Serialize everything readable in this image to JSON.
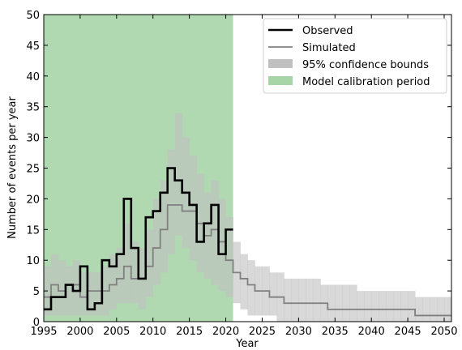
{
  "chart_data": {
    "type": "line",
    "xlabel": "Year",
    "ylabel": "Number of events per year",
    "xlim": [
      1995,
      2051
    ],
    "ylim": [
      0,
      50
    ],
    "xticks": [
      1995,
      2000,
      2005,
      2010,
      2015,
      2020,
      2025,
      2030,
      2035,
      2040,
      2045,
      2050
    ],
    "yticks": [
      0,
      5,
      10,
      15,
      20,
      25,
      30,
      35,
      40,
      45,
      50
    ],
    "calibration_period": [
      1995,
      2021
    ],
    "legend_position": "top-right",
    "colors": {
      "observed": "#000000",
      "simulated": "#808080",
      "confidence": "#c0c0c0",
      "calibration": "#a8d5a8"
    },
    "legend": [
      {
        "key": "observed",
        "label": "Observed"
      },
      {
        "key": "simulated",
        "label": "Simulated"
      },
      {
        "key": "confidence",
        "label": "95% confidence bounds"
      },
      {
        "key": "calibration",
        "label": "Model calibration period"
      }
    ],
    "observed": {
      "name": "Observed",
      "x": [
        1995,
        1996,
        1997,
        1998,
        1999,
        2000,
        2001,
        2002,
        2003,
        2004,
        2005,
        2006,
        2007,
        2008,
        2009,
        2010,
        2011,
        2012,
        2013,
        2014,
        2015,
        2016,
        2017,
        2018,
        2019,
        2020
      ],
      "y": [
        2,
        4,
        4,
        6,
        5,
        9,
        2,
        3,
        10,
        9,
        11,
        20,
        12,
        7,
        17,
        18,
        21,
        25,
        23,
        21,
        19,
        13,
        16,
        19,
        11,
        15
      ]
    },
    "simulated": {
      "name": "Simulated",
      "x": [
        1995,
        1996,
        1997,
        1998,
        1999,
        2000,
        2001,
        2002,
        2003,
        2004,
        2005,
        2006,
        2007,
        2008,
        2009,
        2010,
        2011,
        2012,
        2013,
        2014,
        2015,
        2016,
        2017,
        2018,
        2019,
        2020,
        2021,
        2022,
        2023,
        2024,
        2025,
        2026,
        2027,
        2028,
        2029,
        2030,
        2031,
        2032,
        2033,
        2034,
        2035,
        2036,
        2037,
        2038,
        2039,
        2040,
        2041,
        2042,
        2043,
        2044,
        2045,
        2046,
        2047,
        2048,
        2049,
        2050
      ],
      "y": [
        4,
        6,
        5,
        6,
        6,
        4,
        5,
        5,
        5,
        6,
        7,
        9,
        7,
        7,
        9,
        12,
        15,
        19,
        19,
        18,
        18,
        16,
        14,
        15,
        13,
        10,
        8,
        7,
        6,
        5,
        5,
        4,
        4,
        3,
        3,
        3,
        3,
        3,
        3,
        2,
        2,
        2,
        2,
        2,
        2,
        2,
        2,
        2,
        2,
        2,
        2,
        1,
        1,
        1,
        1,
        1
      ]
    },
    "confidence_bounds": {
      "name": "95% confidence bounds",
      "x": [
        1995,
        1996,
        1997,
        1998,
        1999,
        2000,
        2001,
        2002,
        2003,
        2004,
        2005,
        2006,
        2007,
        2008,
        2009,
        2010,
        2011,
        2012,
        2013,
        2014,
        2015,
        2016,
        2017,
        2018,
        2019,
        2020,
        2021,
        2022,
        2023,
        2024,
        2025,
        2026,
        2027,
        2028,
        2029,
        2030,
        2031,
        2032,
        2033,
        2034,
        2035,
        2036,
        2037,
        2038,
        2039,
        2040,
        2041,
        2042,
        2043,
        2044,
        2045,
        2046,
        2047,
        2048,
        2049,
        2050
      ],
      "lower": [
        1,
        1,
        1,
        1,
        1,
        1,
        1,
        1,
        1,
        2,
        3,
        3,
        3,
        2,
        4,
        6,
        8,
        11,
        14,
        12,
        10,
        8,
        7,
        6,
        5,
        4,
        3,
        2,
        1,
        1,
        1,
        1,
        0,
        0,
        0,
        0,
        0,
        0,
        0,
        0,
        0,
        0,
        0,
        0,
        0,
        0,
        0,
        0,
        0,
        0,
        0,
        0,
        0,
        0,
        0,
        0
      ],
      "upper": [
        9,
        11,
        10,
        9,
        10,
        8,
        8,
        8,
        9,
        11,
        12,
        16,
        13,
        12,
        15,
        20,
        23,
        28,
        34,
        30,
        27,
        24,
        21,
        23,
        20,
        17,
        13,
        11,
        10,
        9,
        9,
        8,
        8,
        7,
        7,
        7,
        7,
        7,
        6,
        6,
        6,
        6,
        6,
        5,
        5,
        5,
        5,
        5,
        5,
        5,
        5,
        4,
        4,
        4,
        4,
        4
      ]
    }
  }
}
